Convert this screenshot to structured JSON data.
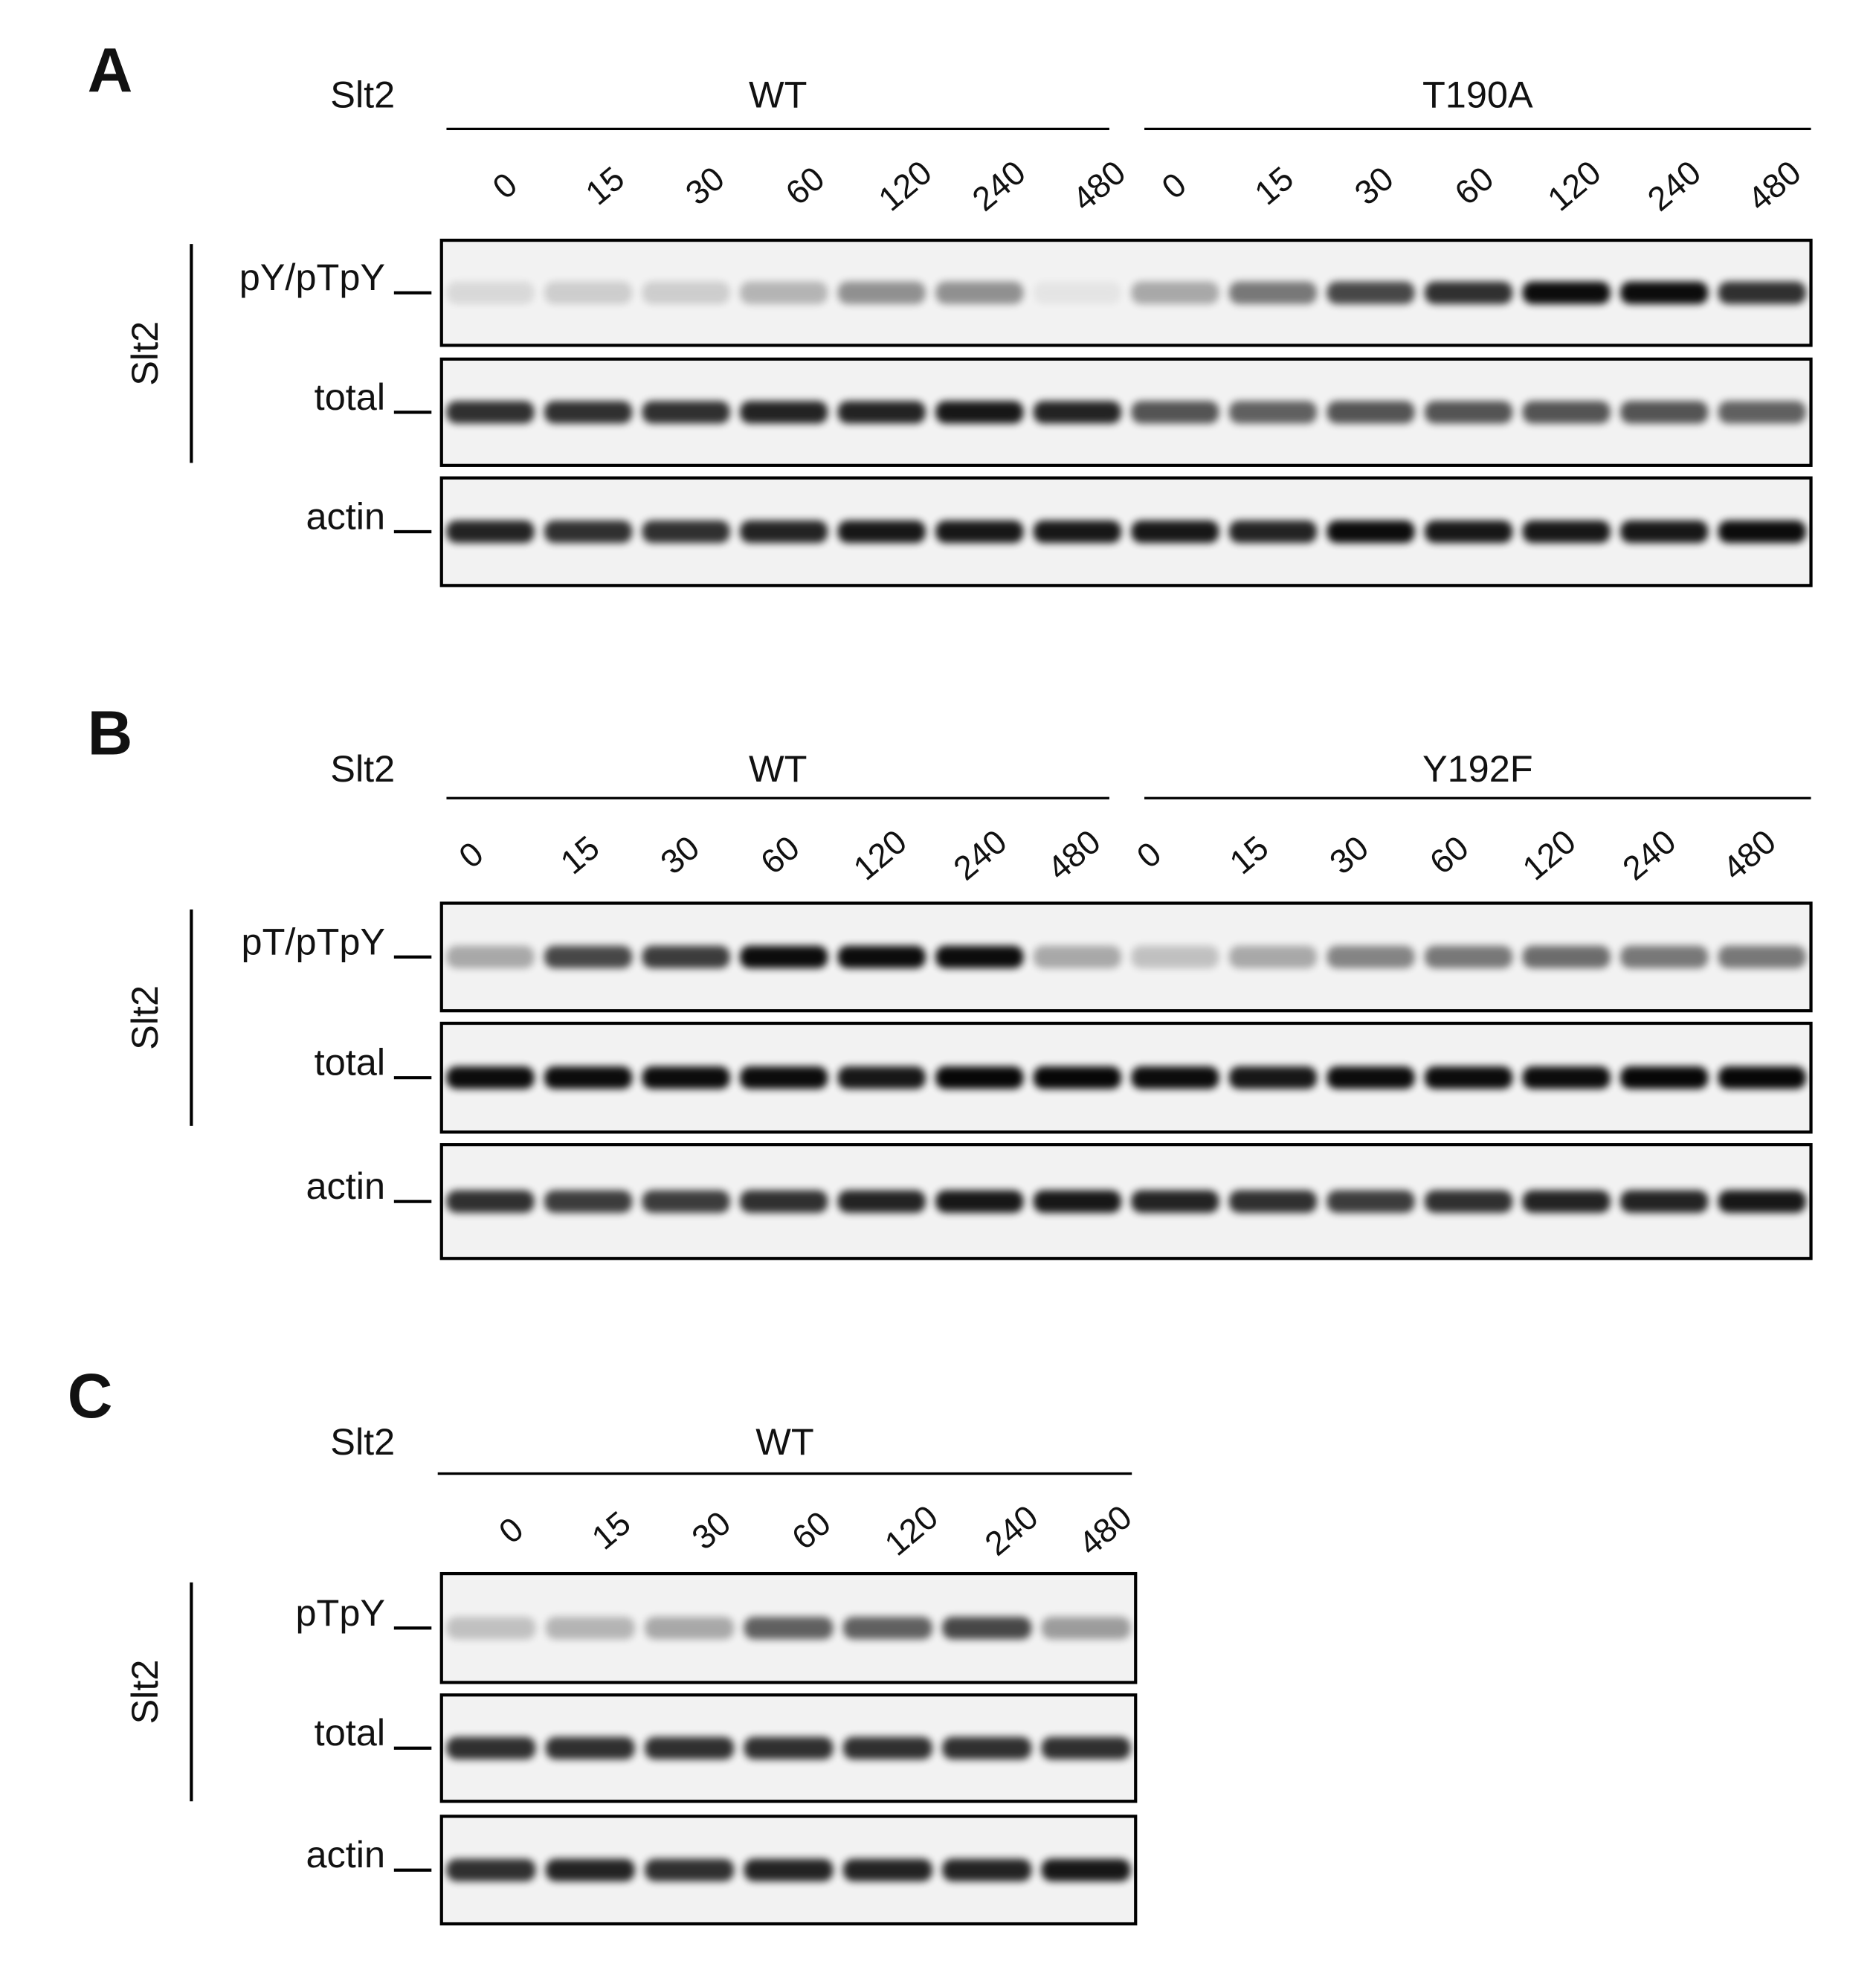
{
  "panels": [
    {
      "label": "A",
      "strain_label": "Slt2",
      "side_label": "Slt2",
      "groups": [
        {
          "name": "WT",
          "lanes": [
            "0",
            "15",
            "30",
            "60",
            "120",
            "240",
            "480"
          ]
        },
        {
          "name": "T190A",
          "lanes": [
            "0",
            "15",
            "30",
            "60",
            "120",
            "240",
            "480"
          ]
        }
      ],
      "rows": [
        "pY/pTpY",
        "total",
        "actin"
      ]
    },
    {
      "label": "B",
      "strain_label": "Slt2",
      "side_label": "Slt2",
      "groups": [
        {
          "name": "WT",
          "lanes": [
            "0",
            "15",
            "30",
            "60",
            "120",
            "240",
            "480"
          ]
        },
        {
          "name": "Y192F",
          "lanes": [
            "0",
            "15",
            "30",
            "60",
            "120",
            "240",
            "480"
          ]
        }
      ],
      "rows": [
        "pT/pTpY",
        "total",
        "actin"
      ]
    },
    {
      "label": "C",
      "strain_label": "Slt2",
      "side_label": "Slt2",
      "groups": [
        {
          "name": "WT",
          "lanes": [
            "0",
            "15",
            "30",
            "60",
            "120",
            "240",
            "480"
          ]
        }
      ],
      "rows": [
        "pTpY",
        "total",
        "actin"
      ]
    }
  ]
}
